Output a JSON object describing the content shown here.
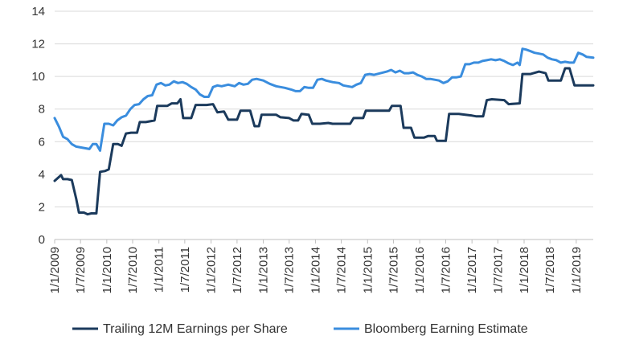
{
  "chart_data": {
    "type": "line",
    "title": "",
    "xlabel": "",
    "ylabel": "",
    "ylim": [
      0,
      14
    ],
    "yticks": [
      0,
      2,
      4,
      6,
      8,
      10,
      12,
      14
    ],
    "xlim": [
      "2009-01-01",
      "2019-04-30"
    ],
    "xticks": [
      {
        "date": "2009-01-01",
        "label": "1/1/2009"
      },
      {
        "date": "2009-07-01",
        "label": "1/7/2009"
      },
      {
        "date": "2010-01-01",
        "label": "1/1/2010"
      },
      {
        "date": "2010-07-01",
        "label": "1/7/2010"
      },
      {
        "date": "2011-01-01",
        "label": "1/1/2011"
      },
      {
        "date": "2011-07-01",
        "label": "1/7/2011"
      },
      {
        "date": "2012-01-01",
        "label": "1/1/2012"
      },
      {
        "date": "2012-07-01",
        "label": "1/7/2012"
      },
      {
        "date": "2013-01-01",
        "label": "1/1/2013"
      },
      {
        "date": "2013-07-01",
        "label": "1/7/2013"
      },
      {
        "date": "2014-01-01",
        "label": "1/1/2014"
      },
      {
        "date": "2014-07-01",
        "label": "1/7/2014"
      },
      {
        "date": "2015-01-01",
        "label": "1/1/2015"
      },
      {
        "date": "2015-07-01",
        "label": "1/7/2015"
      },
      {
        "date": "2016-01-01",
        "label": "1/1/2016"
      },
      {
        "date": "2016-07-01",
        "label": "1/7/2016"
      },
      {
        "date": "2017-01-01",
        "label": "1/1/2017"
      },
      {
        "date": "2017-07-01",
        "label": "1/7/2017"
      },
      {
        "date": "2018-01-01",
        "label": "1/1/2018"
      },
      {
        "date": "2018-07-01",
        "label": "1/7/2018"
      },
      {
        "date": "2019-01-01",
        "label": "1/1/2019"
      }
    ],
    "grid": {
      "horizontal": true,
      "vertical": false
    },
    "legend": "bottom",
    "series": [
      {
        "name": "Trailing 12M Earnings per Share",
        "color": "#1b3a5c",
        "points": [
          [
            "2009-01-01",
            3.6
          ],
          [
            "2009-02-15",
            3.95
          ],
          [
            "2009-03-01",
            3.7
          ],
          [
            "2009-04-01",
            3.7
          ],
          [
            "2009-05-01",
            3.65
          ],
          [
            "2009-06-01",
            2.5
          ],
          [
            "2009-06-20",
            1.65
          ],
          [
            "2009-07-25",
            1.65
          ],
          [
            "2009-08-20",
            1.55
          ],
          [
            "2009-09-15",
            1.6
          ],
          [
            "2009-10-20",
            1.6
          ],
          [
            "2009-11-15",
            4.15
          ],
          [
            "2009-12-20",
            4.2
          ],
          [
            "2010-01-15",
            4.3
          ],
          [
            "2010-02-15",
            5.85
          ],
          [
            "2010-03-20",
            5.85
          ],
          [
            "2010-04-15",
            5.75
          ],
          [
            "2010-05-15",
            6.5
          ],
          [
            "2010-06-20",
            6.55
          ],
          [
            "2010-08-01",
            6.55
          ],
          [
            "2010-08-20",
            7.2
          ],
          [
            "2010-10-01",
            7.2
          ],
          [
            "2010-12-01",
            7.3
          ],
          [
            "2010-12-20",
            8.2
          ],
          [
            "2011-03-01",
            8.2
          ],
          [
            "2011-04-01",
            8.35
          ],
          [
            "2011-05-10",
            8.35
          ],
          [
            "2011-06-01",
            8.6
          ],
          [
            "2011-06-20",
            7.45
          ],
          [
            "2011-08-15",
            7.45
          ],
          [
            "2011-09-15",
            8.25
          ],
          [
            "2011-12-01",
            8.25
          ],
          [
            "2012-01-15",
            8.3
          ],
          [
            "2012-02-15",
            7.8
          ],
          [
            "2012-04-01",
            7.85
          ],
          [
            "2012-05-01",
            7.35
          ],
          [
            "2012-07-01",
            7.35
          ],
          [
            "2012-07-25",
            7.9
          ],
          [
            "2012-10-01",
            7.9
          ],
          [
            "2012-11-01",
            6.95
          ],
          [
            "2012-12-01",
            6.95
          ],
          [
            "2012-12-20",
            7.65
          ],
          [
            "2013-04-01",
            7.65
          ],
          [
            "2013-05-01",
            7.5
          ],
          [
            "2013-07-01",
            7.45
          ],
          [
            "2013-08-01",
            7.3
          ],
          [
            "2013-09-01",
            7.3
          ],
          [
            "2013-09-25",
            7.7
          ],
          [
            "2013-11-15",
            7.65
          ],
          [
            "2013-12-10",
            7.1
          ],
          [
            "2014-02-01",
            7.1
          ],
          [
            "2014-04-01",
            7.15
          ],
          [
            "2014-05-01",
            7.1
          ],
          [
            "2014-09-01",
            7.1
          ],
          [
            "2014-09-25",
            7.45
          ],
          [
            "2014-12-01",
            7.45
          ],
          [
            "2014-12-20",
            7.9
          ],
          [
            "2015-06-01",
            7.9
          ],
          [
            "2015-06-20",
            8.2
          ],
          [
            "2015-08-20",
            8.2
          ],
          [
            "2015-09-10",
            6.85
          ],
          [
            "2015-11-01",
            6.85
          ],
          [
            "2015-11-25",
            6.25
          ],
          [
            "2016-02-01",
            6.25
          ],
          [
            "2016-03-01",
            6.35
          ],
          [
            "2016-04-15",
            6.35
          ],
          [
            "2016-05-01",
            6.05
          ],
          [
            "2016-07-01",
            6.05
          ],
          [
            "2016-07-25",
            7.7
          ],
          [
            "2016-10-01",
            7.7
          ],
          [
            "2016-11-15",
            7.65
          ],
          [
            "2017-01-01",
            7.6
          ],
          [
            "2017-02-01",
            7.55
          ],
          [
            "2017-03-20",
            7.55
          ],
          [
            "2017-04-15",
            8.55
          ],
          [
            "2017-05-20",
            8.6
          ],
          [
            "2017-08-15",
            8.55
          ],
          [
            "2017-09-15",
            8.3
          ],
          [
            "2017-12-01",
            8.35
          ],
          [
            "2017-12-20",
            10.15
          ],
          [
            "2018-02-15",
            10.15
          ],
          [
            "2018-04-15",
            10.3
          ],
          [
            "2018-06-01",
            10.2
          ],
          [
            "2018-06-20",
            9.75
          ],
          [
            "2018-09-15",
            9.75
          ],
          [
            "2018-10-15",
            10.5
          ],
          [
            "2018-11-15",
            10.5
          ],
          [
            "2018-12-20",
            9.45
          ],
          [
            "2019-04-30",
            9.45
          ]
        ]
      },
      {
        "name": "Bloomberg Earning Estimate",
        "color": "#3a8dde",
        "points": [
          [
            "2009-01-01",
            7.45
          ],
          [
            "2009-02-01",
            6.9
          ],
          [
            "2009-03-01",
            6.3
          ],
          [
            "2009-04-01",
            6.15
          ],
          [
            "2009-05-01",
            5.85
          ],
          [
            "2009-06-01",
            5.7
          ],
          [
            "2009-07-01",
            5.65
          ],
          [
            "2009-08-01",
            5.6
          ],
          [
            "2009-09-01",
            5.55
          ],
          [
            "2009-09-25",
            5.85
          ],
          [
            "2009-10-20",
            5.85
          ],
          [
            "2009-11-15",
            5.45
          ],
          [
            "2009-12-15",
            7.1
          ],
          [
            "2010-01-15",
            7.1
          ],
          [
            "2010-02-15",
            7.0
          ],
          [
            "2010-03-15",
            7.3
          ],
          [
            "2010-04-15",
            7.5
          ],
          [
            "2010-05-15",
            7.6
          ],
          [
            "2010-06-15",
            8.0
          ],
          [
            "2010-07-15",
            8.25
          ],
          [
            "2010-08-15",
            8.3
          ],
          [
            "2010-09-15",
            8.6
          ],
          [
            "2010-10-15",
            8.8
          ],
          [
            "2010-11-15",
            8.85
          ],
          [
            "2010-12-15",
            9.5
          ],
          [
            "2011-01-15",
            9.6
          ],
          [
            "2011-02-15",
            9.45
          ],
          [
            "2011-03-15",
            9.5
          ],
          [
            "2011-04-15",
            9.7
          ],
          [
            "2011-05-15",
            9.6
          ],
          [
            "2011-06-15",
            9.65
          ],
          [
            "2011-07-15",
            9.55
          ],
          [
            "2011-08-15",
            9.35
          ],
          [
            "2011-09-15",
            9.2
          ],
          [
            "2011-10-15",
            8.9
          ],
          [
            "2011-11-15",
            8.75
          ],
          [
            "2011-12-15",
            8.75
          ],
          [
            "2012-01-15",
            9.35
          ],
          [
            "2012-02-15",
            9.45
          ],
          [
            "2012-03-15",
            9.4
          ],
          [
            "2012-05-01",
            9.5
          ],
          [
            "2012-06-15",
            9.4
          ],
          [
            "2012-07-15",
            9.6
          ],
          [
            "2012-08-15",
            9.5
          ],
          [
            "2012-09-15",
            9.55
          ],
          [
            "2012-10-15",
            9.8
          ],
          [
            "2012-11-15",
            9.85
          ],
          [
            "2013-01-01",
            9.75
          ],
          [
            "2013-02-15",
            9.55
          ],
          [
            "2013-04-01",
            9.4
          ],
          [
            "2013-06-01",
            9.3
          ],
          [
            "2013-07-15",
            9.2
          ],
          [
            "2013-08-15",
            9.1
          ],
          [
            "2013-09-15",
            9.1
          ],
          [
            "2013-10-15",
            9.35
          ],
          [
            "2013-11-15",
            9.3
          ],
          [
            "2013-12-15",
            9.3
          ],
          [
            "2014-01-15",
            9.8
          ],
          [
            "2014-02-15",
            9.85
          ],
          [
            "2014-03-15",
            9.75
          ],
          [
            "2014-05-01",
            9.65
          ],
          [
            "2014-06-15",
            9.6
          ],
          [
            "2014-07-15",
            9.45
          ],
          [
            "2014-08-15",
            9.4
          ],
          [
            "2014-09-15",
            9.35
          ],
          [
            "2014-10-15",
            9.5
          ],
          [
            "2014-11-15",
            9.6
          ],
          [
            "2014-12-15",
            10.1
          ],
          [
            "2015-01-15",
            10.15
          ],
          [
            "2015-02-15",
            10.1
          ],
          [
            "2015-04-01",
            10.2
          ],
          [
            "2015-05-15",
            10.3
          ],
          [
            "2015-06-15",
            10.4
          ],
          [
            "2015-07-15",
            10.25
          ],
          [
            "2015-08-15",
            10.35
          ],
          [
            "2015-09-15",
            10.2
          ],
          [
            "2015-10-15",
            10.2
          ],
          [
            "2015-11-15",
            10.25
          ],
          [
            "2015-12-15",
            10.1
          ],
          [
            "2016-01-15",
            10.0
          ],
          [
            "2016-02-15",
            9.85
          ],
          [
            "2016-03-15",
            9.85
          ],
          [
            "2016-04-15",
            9.8
          ],
          [
            "2016-05-15",
            9.75
          ],
          [
            "2016-06-15",
            9.6
          ],
          [
            "2016-07-15",
            9.7
          ],
          [
            "2016-08-15",
            9.95
          ],
          [
            "2016-09-15",
            9.95
          ],
          [
            "2016-10-15",
            10.0
          ],
          [
            "2016-11-15",
            10.75
          ],
          [
            "2016-12-15",
            10.75
          ],
          [
            "2017-01-15",
            10.85
          ],
          [
            "2017-02-15",
            10.85
          ],
          [
            "2017-03-15",
            10.95
          ],
          [
            "2017-04-15",
            11.0
          ],
          [
            "2017-05-15",
            11.05
          ],
          [
            "2017-06-15",
            11.0
          ],
          [
            "2017-07-15",
            11.05
          ],
          [
            "2017-08-15",
            10.95
          ],
          [
            "2017-09-15",
            10.8
          ],
          [
            "2017-10-15",
            10.7
          ],
          [
            "2017-11-15",
            10.85
          ],
          [
            "2017-12-01",
            10.7
          ],
          [
            "2017-12-20",
            11.7
          ],
          [
            "2018-01-15",
            11.65
          ],
          [
            "2018-02-15",
            11.55
          ],
          [
            "2018-03-15",
            11.45
          ],
          [
            "2018-04-15",
            11.4
          ],
          [
            "2018-05-15",
            11.35
          ],
          [
            "2018-06-15",
            11.15
          ],
          [
            "2018-07-15",
            11.05
          ],
          [
            "2018-08-15",
            11.0
          ],
          [
            "2018-09-15",
            10.85
          ],
          [
            "2018-10-15",
            10.9
          ],
          [
            "2018-11-15",
            10.85
          ],
          [
            "2018-12-15",
            10.85
          ],
          [
            "2019-01-15",
            11.45
          ],
          [
            "2019-02-15",
            11.35
          ],
          [
            "2019-03-15",
            11.2
          ],
          [
            "2019-04-30",
            11.15
          ]
        ]
      }
    ]
  }
}
